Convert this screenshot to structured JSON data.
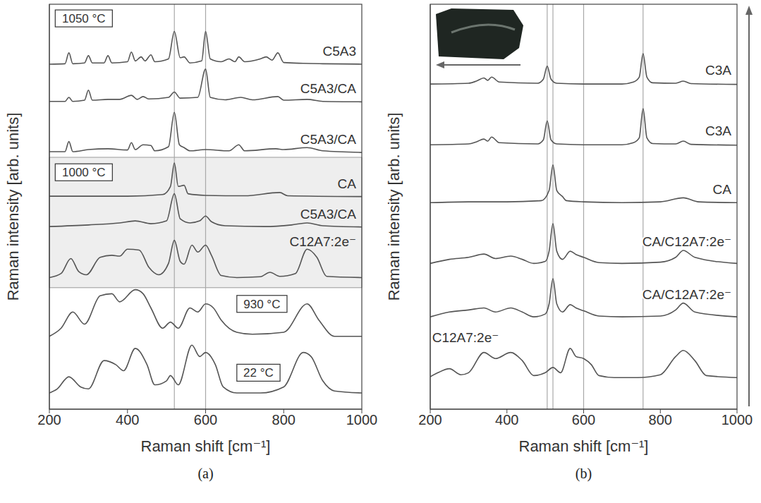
{
  "chart_data": [
    {
      "type": "line",
      "caption": "(a)",
      "xlabel": "Raman shift [cm⁻¹]",
      "ylabel": "Raman intensity [arb. units]",
      "xlim": [
        200,
        1000
      ],
      "xticks": [
        200,
        400,
        600,
        800,
        1000
      ],
      "ylim": [
        0,
        100
      ],
      "tick_labels": "x",
      "grid": false,
      "reference_lines": [
        520,
        600
      ],
      "annotations": [
        "1050 °C"
      ],
      "band": {
        "y": [
          30,
          62.2
        ],
        "label": "1000 °C"
      },
      "series": [
        {
          "name": "C5A3",
          "color": "#555555",
          "x": [
            200,
            240,
            250,
            260,
            290,
            300,
            310,
            340,
            350,
            360,
            400,
            410,
            420,
            435,
            445,
            460,
            470,
            505,
            520,
            535,
            545,
            560,
            590,
            600,
            612,
            640,
            660,
            675,
            685,
            700,
            740,
            755,
            770,
            785,
            800,
            850,
            900,
            1000
          ],
          "values": [
            85.2,
            85.3,
            88,
            85.3,
            85.5,
            87.3,
            85.5,
            85.5,
            87.3,
            85.5,
            85.8,
            88.2,
            86,
            87,
            86,
            87.5,
            85.8,
            86.5,
            93.3,
            86.8,
            87,
            85.5,
            86,
            93.3,
            86.5,
            85.8,
            86.5,
            85.8,
            87,
            85.8,
            86.5,
            87,
            86.2,
            88,
            85.6,
            85.4,
            85.3,
            85.2
          ]
        },
        {
          "name": "C5A3/CA",
          "color": "#555555",
          "x": [
            200,
            240,
            250,
            260,
            290,
            300,
            310,
            350,
            380,
            410,
            425,
            440,
            455,
            505,
            520,
            535,
            580,
            600,
            612,
            650,
            690,
            720,
            785,
            800,
            860,
            900,
            1000
          ],
          "values": [
            76,
            76,
            77,
            76,
            76.3,
            78.8,
            76.3,
            76.5,
            76.5,
            77.5,
            76.5,
            77.2,
            76.6,
            77,
            78.3,
            76.8,
            77,
            84,
            77,
            76.4,
            77,
            76.4,
            77.2,
            76.3,
            76.5,
            76,
            75.9
          ]
        },
        {
          "name": "C5A3/CA",
          "color": "#555555",
          "x": [
            200,
            240,
            250,
            260,
            300,
            350,
            400,
            410,
            420,
            440,
            460,
            470,
            505,
            520,
            533,
            545,
            560,
            600,
            660,
            685,
            700,
            780,
            800,
            860,
            900,
            1000
          ],
          "values": [
            63.6,
            63.6,
            66.1,
            63.6,
            64.1,
            64.3,
            64,
            65.8,
            64.1,
            65.3,
            65.1,
            63.8,
            64.8,
            73.3,
            65.3,
            64.6,
            63.8,
            64.1,
            63.8,
            65.3,
            63.8,
            64.3,
            64.1,
            64.6,
            63.8,
            63.4
          ]
        },
        {
          "name": "CA",
          "color": "#555555",
          "x": [
            200,
            400,
            490,
            510,
            520,
            530,
            545,
            555,
            600,
            700,
            790,
            810,
            1000
          ],
          "values": [
            52.6,
            52.6,
            53,
            55,
            60.8,
            55,
            55.3,
            53.2,
            52.8,
            52.7,
            53.5,
            52.7,
            52.5
          ]
        },
        {
          "name": "C5A3/CA",
          "color": "#555555",
          "x": [
            200,
            300,
            380,
            420,
            460,
            500,
            520,
            535,
            560,
            585,
            600,
            615,
            650,
            750,
            820,
            860,
            900,
            1000
          ],
          "values": [
            45.1,
            45.5,
            46,
            46.5,
            45.8,
            46.5,
            53.2,
            47,
            46,
            46.5,
            47.7,
            46.3,
            45.3,
            45.1,
            45.5,
            46,
            45.3,
            45
          ]
        },
        {
          "name": "C12A7:2e⁻",
          "color": "#555555",
          "x": [
            200,
            230,
            255,
            275,
            295,
            330,
            360,
            380,
            400,
            430,
            455,
            480,
            505,
            520,
            535,
            545,
            565,
            580,
            600,
            615,
            640,
            680,
            740,
            765,
            790,
            830,
            860,
            885,
            910,
            1000
          ],
          "values": [
            32.5,
            33.5,
            37.2,
            34,
            33.2,
            37.5,
            38,
            37.8,
            39.5,
            39.3,
            35,
            33.2,
            36,
            41.7,
            36.5,
            35.8,
            40.5,
            38.8,
            40.5,
            38,
            33,
            32.5,
            32.7,
            33.8,
            32.8,
            33.5,
            39.5,
            37.5,
            32.8,
            32.5
          ]
        },
        {
          "name": "930 °C",
          "color": "#555555",
          "x": [
            200,
            230,
            260,
            290,
            330,
            360,
            380,
            420,
            440,
            460,
            490,
            510,
            530,
            560,
            580,
            600,
            620,
            640,
            680,
            720,
            800,
            860,
            890,
            930,
            1000
          ],
          "values": [
            18,
            20,
            24,
            21,
            28,
            28.5,
            26.5,
            29.5,
            28.5,
            25,
            20,
            21.5,
            20,
            25,
            24,
            26,
            25,
            22,
            19,
            18.5,
            19,
            26,
            22,
            18,
            18
          ]
        },
        {
          "name": "22 °C",
          "color": "#555555",
          "x": [
            200,
            220,
            250,
            280,
            300,
            340,
            370,
            390,
            420,
            450,
            470,
            500,
            510,
            530,
            565,
            585,
            600,
            625,
            645,
            680,
            740,
            800,
            850,
            870,
            900,
            930,
            1000
          ],
          "values": [
            4,
            5,
            8,
            5.5,
            5,
            12,
            11,
            9.5,
            15,
            11,
            6,
            7,
            8.3,
            6,
            15.8,
            13,
            14,
            11,
            5.5,
            4,
            4,
            5.5,
            14,
            13,
            7,
            4.5,
            4
          ]
        }
      ]
    },
    {
      "type": "line",
      "caption": "(b)",
      "xlabel": "Raman shift [cm⁻¹]",
      "ylabel": "Raman intensity [arb. units]",
      "xlim": [
        200,
        1000
      ],
      "xticks": [
        200,
        400,
        600,
        800,
        1000
      ],
      "ylim": [
        0,
        100
      ],
      "tick_labels": "x",
      "grid": false,
      "reference_lines": [
        505,
        520,
        600,
        755
      ],
      "series": [
        {
          "name": "C3A",
          "color": "#555555",
          "x": [
            200,
            300,
            320,
            340,
            350,
            360,
            380,
            480,
            495,
            505,
            515,
            530,
            600,
            700,
            730,
            745,
            755,
            765,
            780,
            840,
            860,
            880,
            1000
          ],
          "values": [
            80.3,
            80.5,
            81,
            81.8,
            81.2,
            82,
            80.8,
            80.5,
            81.5,
            84.7,
            81.5,
            80.5,
            80.3,
            80.3,
            80.8,
            82,
            87.8,
            82,
            80.6,
            80.5,
            81,
            80.4,
            80.2
          ]
        },
        {
          "name": "C3A",
          "color": "#555555",
          "x": [
            200,
            300,
            320,
            340,
            350,
            360,
            380,
            480,
            495,
            505,
            515,
            530,
            600,
            700,
            730,
            745,
            755,
            765,
            780,
            840,
            860,
            880,
            1000
          ],
          "values": [
            65.3,
            65.5,
            66,
            66.7,
            66.2,
            67.2,
            65.8,
            65.5,
            66.5,
            71.2,
            66.5,
            65.5,
            65.3,
            65.3,
            65.8,
            67,
            74.2,
            67,
            65.6,
            65.5,
            66.2,
            65.4,
            65.2
          ]
        },
        {
          "name": "CA",
          "color": "#555555",
          "x": [
            200,
            300,
            400,
            490,
            510,
            520,
            530,
            545,
            555,
            600,
            700,
            800,
            860,
            900,
            1000
          ],
          "values": [
            51,
            51.2,
            51.2,
            51.5,
            54,
            60.3,
            54,
            52.5,
            51.5,
            51.2,
            51,
            51.2,
            52.2,
            51.2,
            51
          ]
        },
        {
          "name": "CA/C12A7:2e⁻",
          "color": "#555555",
          "x": [
            200,
            250,
            300,
            340,
            370,
            410,
            440,
            470,
            500,
            510,
            520,
            530,
            545,
            565,
            580,
            600,
            640,
            700,
            800,
            840,
            860,
            890,
            1000
          ],
          "values": [
            36,
            37,
            37.5,
            38.3,
            37.2,
            37.8,
            37,
            36,
            36.5,
            39,
            45.8,
            39,
            37,
            39,
            38.2,
            37.5,
            36.2,
            36,
            36.3,
            37.5,
            39.2,
            37.5,
            36
          ]
        },
        {
          "name": "CA/C12A7:2e⁻",
          "color": "#555555",
          "x": [
            200,
            250,
            300,
            340,
            370,
            410,
            440,
            470,
            500,
            510,
            520,
            530,
            545,
            565,
            580,
            600,
            640,
            700,
            800,
            840,
            860,
            890,
            1000
          ],
          "values": [
            22.8,
            24,
            24.5,
            25,
            24,
            25,
            24,
            22.8,
            23.5,
            26,
            32.2,
            26,
            24,
            25.8,
            25,
            24.3,
            23,
            22.8,
            23,
            24.5,
            26.2,
            24,
            22.8
          ]
        },
        {
          "name": "C12A7:2e⁻",
          "color": "#555555",
          "x": [
            200,
            220,
            250,
            280,
            300,
            340,
            370,
            410,
            440,
            470,
            500,
            520,
            540,
            565,
            580,
            600,
            620,
            640,
            680,
            740,
            800,
            840,
            860,
            890,
            920,
            1000
          ],
          "values": [
            8,
            9,
            10,
            8.5,
            9,
            14,
            12.5,
            14,
            12,
            8.3,
            9,
            10.3,
            9,
            15,
            13,
            12.5,
            11,
            8.3,
            7.8,
            7.8,
            8.5,
            13,
            14.5,
            12,
            8.3,
            7.8
          ]
        }
      ]
    }
  ]
}
